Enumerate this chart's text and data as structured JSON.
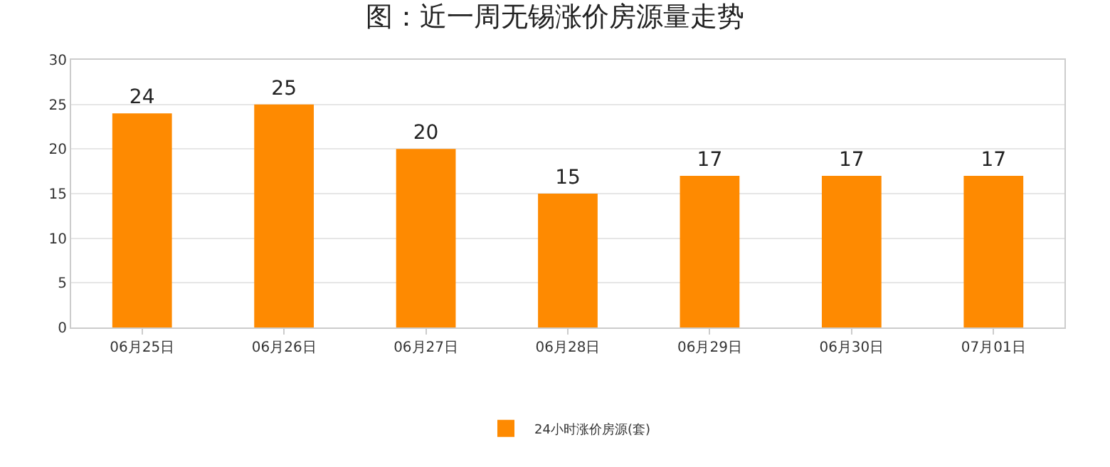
{
  "chart_data": {
    "type": "bar",
    "title": "图：近一周无锡涨价房源量走势",
    "categories": [
      "06月25日",
      "06月26日",
      "06月27日",
      "06月28日",
      "06月29日",
      "06月30日",
      "07月01日"
    ],
    "series": [
      {
        "name": "24小时涨价房源(套)",
        "color": "#fe8a01",
        "values": [
          24,
          25,
          20,
          15,
          17,
          17,
          17
        ]
      }
    ],
    "data_labels": true,
    "ylim": [
      0,
      30
    ],
    "yticks": [
      0,
      5,
      10,
      15,
      20,
      25,
      30
    ],
    "grid": "y",
    "legend": "bottom"
  }
}
